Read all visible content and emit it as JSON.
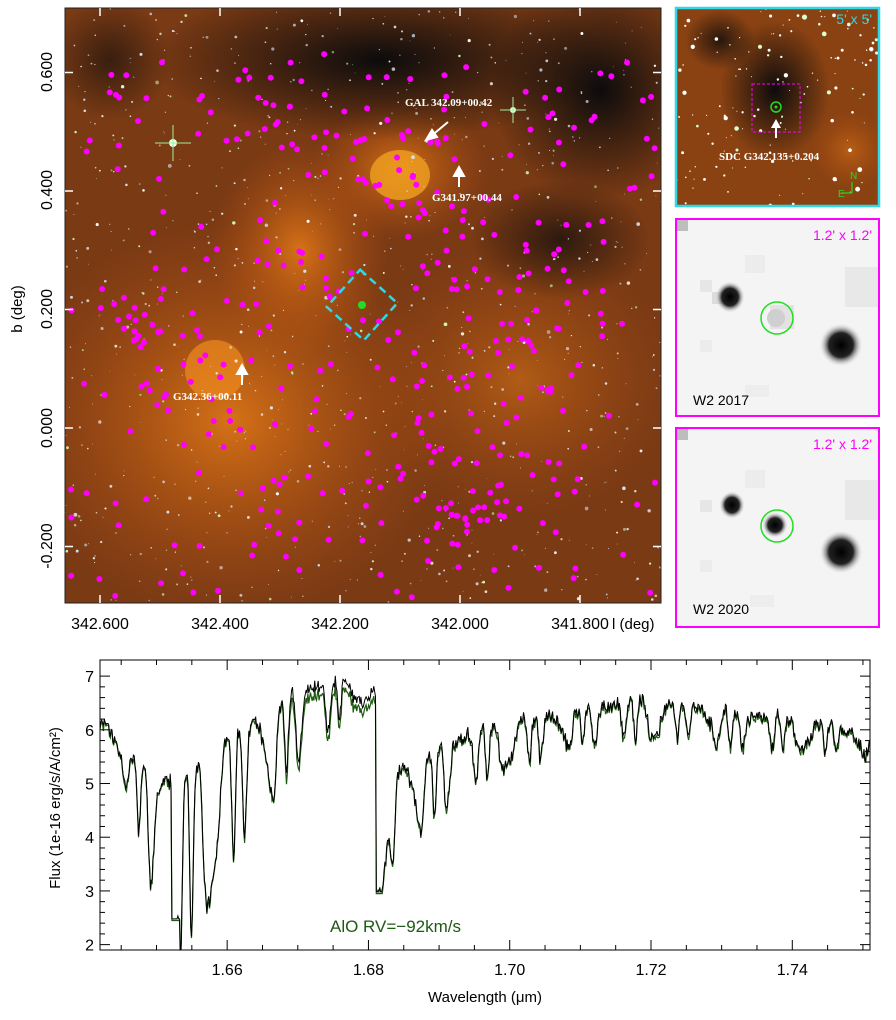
{
  "main_map": {
    "x_ticks": [
      "342.600",
      "342.400",
      "342.200",
      "342.000",
      "341.800"
    ],
    "x_tick_values": [
      342.6,
      342.4,
      342.2,
      342.0,
      341.8
    ],
    "y_ticks": [
      "0.600",
      "0.400",
      "0.200",
      "0.000",
      "-0.200"
    ],
    "y_tick_values": [
      0.6,
      0.4,
      0.2,
      0.0,
      -0.2
    ],
    "xlabel": "l (deg)",
    "ylabel": "b (deg)",
    "annotations": [
      {
        "label": "GAL 342.09+00.42",
        "l": 342.09,
        "b": 0.42
      },
      {
        "label": "G341.97+00.44",
        "l": 341.97,
        "b": 0.44
      },
      {
        "label": "G342.36+00.11",
        "l": 342.36,
        "b": 0.11
      }
    ]
  },
  "inset_wide": {
    "size_label": "5' x 5'",
    "source_label": "SDC G342.135+0.204",
    "compass_n": "N",
    "compass_e": "E"
  },
  "inset_w2_2017": {
    "size_label": "1.2' x 1.2'",
    "label": "W2 2017"
  },
  "inset_w2_2020": {
    "size_label": "1.2' x 1.2'",
    "label": "W2 2020"
  },
  "colors": {
    "magenta": "#ff00ff",
    "cyan": "#2fd8e6",
    "spectrum": "#1e5a12",
    "green": "#22dd22"
  },
  "chart_data": {
    "type": "line",
    "title": "",
    "xlabel": "Wavelength (μm)",
    "ylabel": "Flux (1e-16 erg/s/A/cm²)",
    "xlim": [
      1.642,
      1.751
    ],
    "ylim": [
      1.9,
      7.3
    ],
    "x_ticks": [
      "1.66",
      "1.68",
      "1.70",
      "1.72",
      "1.74"
    ],
    "y_ticks": [
      "2",
      "3",
      "4",
      "5",
      "6",
      "7"
    ],
    "annotation": "AlO RV=−92km/s",
    "series": [
      {
        "name": "observed",
        "color": "#000000",
        "x": [
          1.642,
          1.645,
          1.648,
          1.65,
          1.653,
          1.656,
          1.66,
          1.665,
          1.67,
          1.675,
          1.678,
          1.681,
          1.682,
          1.684,
          1.688,
          1.692,
          1.696,
          1.7,
          1.705,
          1.71,
          1.715,
          1.72,
          1.725,
          1.73,
          1.735,
          1.74,
          1.745,
          1.751
        ],
        "y": [
          6.2,
          5.8,
          5.6,
          5.7,
          5.9,
          6.1,
          6.4,
          6.7,
          6.9,
          7.0,
          6.9,
          6.6,
          3.2,
          5.6,
          5.8,
          6.0,
          6.2,
          6.3,
          6.4,
          6.5,
          6.6,
          6.8,
          6.6,
          6.5,
          6.4,
          6.3,
          6.2,
          6.0
        ]
      },
      {
        "name": "model",
        "color": "#1e5a12",
        "x": [
          1.642,
          1.645,
          1.648,
          1.65,
          1.653,
          1.656,
          1.66,
          1.665,
          1.67,
          1.675,
          1.678,
          1.681,
          1.682,
          1.684,
          1.688,
          1.692,
          1.696,
          1.7,
          1.705,
          1.71,
          1.715,
          1.72,
          1.725,
          1.73,
          1.735,
          1.74,
          1.745,
          1.751
        ],
        "y": [
          6.1,
          5.5,
          4.5,
          3.8,
          3.2,
          3.8,
          4.6,
          5.3,
          5.9,
          6.3,
          6.6,
          6.3,
          3.0,
          4.4,
          4.8,
          5.2,
          5.5,
          5.7,
          5.8,
          6.0,
          6.1,
          6.2,
          6.1,
          6.0,
          5.9,
          5.9,
          5.8,
          5.7
        ],
        "minima": [
          2.4,
          3.0,
          4.9,
          4.4
        ]
      }
    ]
  }
}
